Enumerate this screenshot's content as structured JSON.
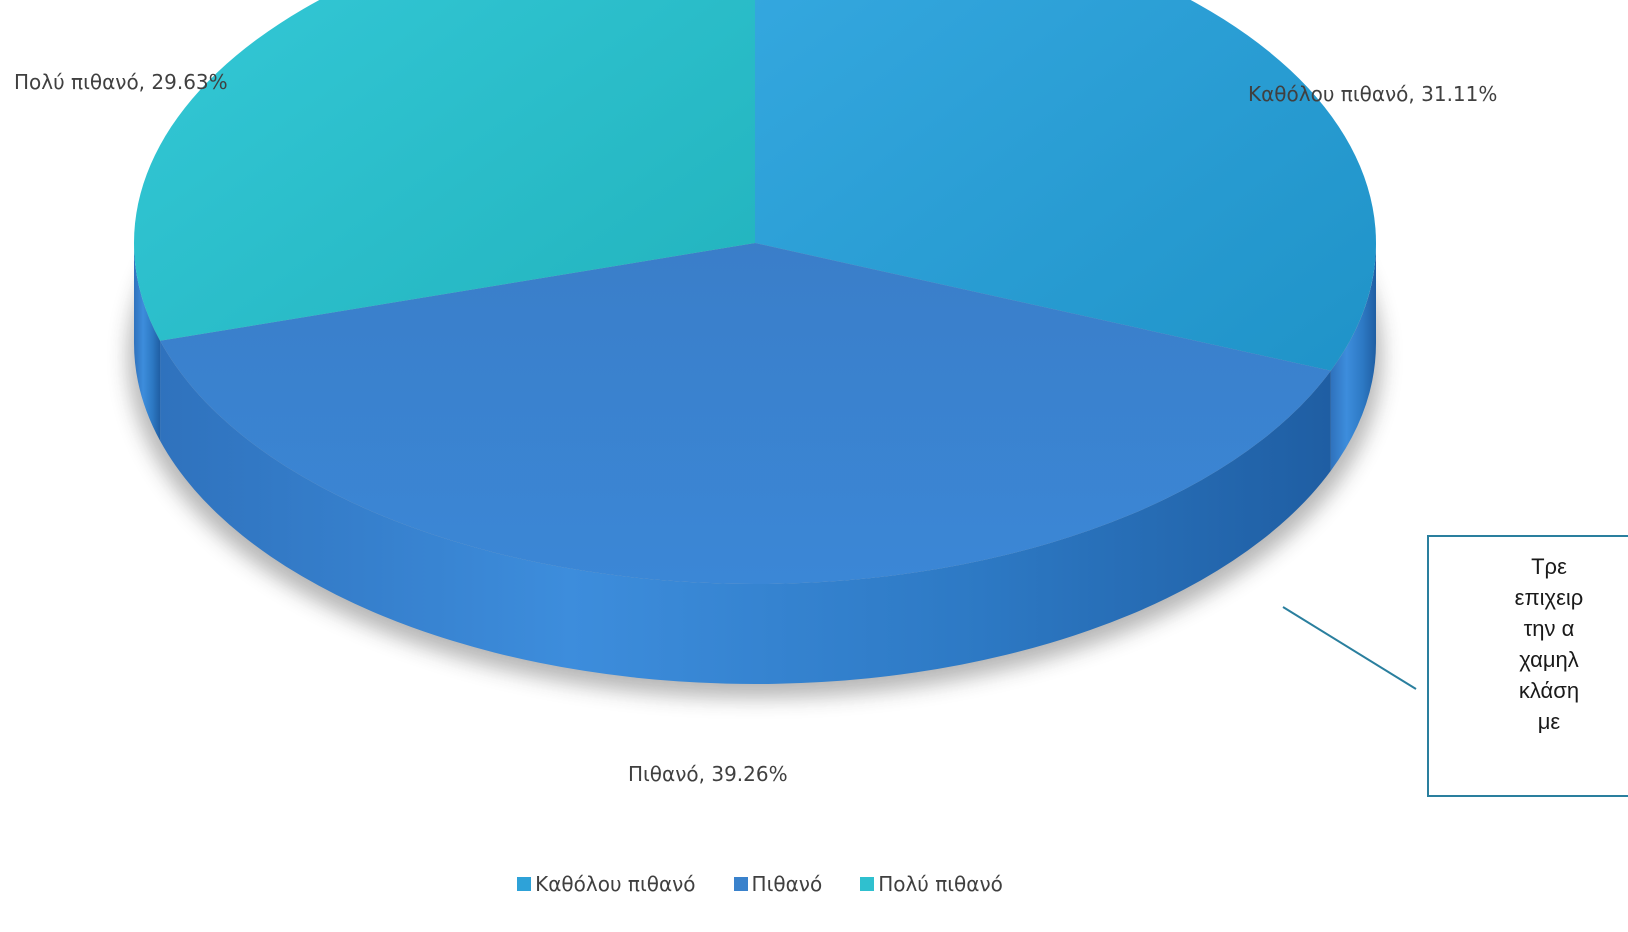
{
  "chart_data": {
    "type": "pie",
    "style": "3d",
    "categories": [
      "Καθόλου πιθανό",
      "Πιθανό",
      "Πολύ πιθανό"
    ],
    "values": [
      31.11,
      39.26,
      29.63
    ],
    "unit": "%",
    "data_labels": [
      "Καθόλου πιθανό, 31.11%",
      "Πιθανό, 39.26%",
      "Πολύ πιθανό, 29.63%"
    ],
    "colors": [
      "#2ea2d8",
      "#3a82cc",
      "#2fc0cf"
    ],
    "legend_position": "bottom",
    "legend": [
      "Καθόλου πιθανό",
      "Πιθανό",
      "Πολύ πιθανό"
    ],
    "callout": {
      "lines": [
        "Τρε",
        "επιχειρ",
        "την α",
        "χαμηλ",
        "κλάση",
        "με"
      ]
    }
  }
}
